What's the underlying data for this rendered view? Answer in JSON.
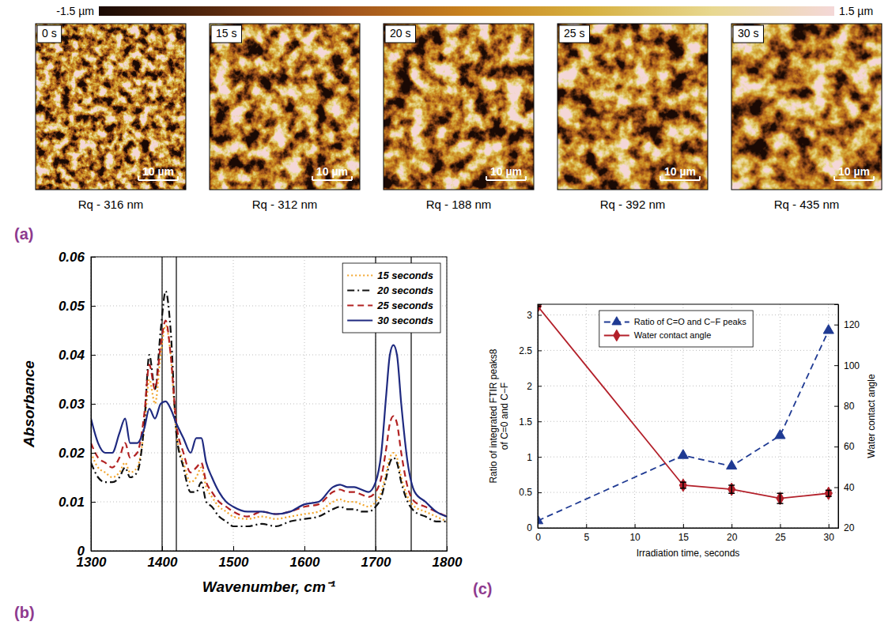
{
  "chart_data": [
    {
      "type": "image_grid",
      "panel_label": "(a)",
      "colorbar": {
        "range": [
          -1.5,
          1.5
        ],
        "ticks": [
          {
            "value": -1.5,
            "label": "-1.5 µm"
          },
          {
            "value": 1.5,
            "label": "1.5 µm"
          }
        ],
        "colors": [
          "#1a0a04",
          "#5a2a0e",
          "#a0521c",
          "#c8821e",
          "#d6b040",
          "#e8d890",
          "#f4d8d8"
        ]
      },
      "images": [
        {
          "label": "0 s",
          "scale_bar": "10 µm",
          "caption": "Rq - 316 nm"
        },
        {
          "label": "15 s",
          "scale_bar": "10 µm",
          "caption": "Rq - 312 nm"
        },
        {
          "label": "20 s",
          "scale_bar": "10 µm",
          "caption": "Rq - 188 nm"
        },
        {
          "label": "25 s",
          "scale_bar": "10 µm",
          "caption": "Rq - 392 nm"
        },
        {
          "label": "30 s",
          "scale_bar": "10 µm",
          "caption": "Rq - 435 nm"
        }
      ]
    },
    {
      "type": "line",
      "panel_label": "(b)",
      "x_label": "Wavenumber, cm⁻¹",
      "y_label": "Absorbance",
      "x": [
        1300,
        1310,
        1320,
        1330,
        1340,
        1348,
        1355,
        1365,
        1375,
        1382,
        1390,
        1398,
        1405,
        1412,
        1420,
        1430,
        1440,
        1448,
        1455,
        1462,
        1470,
        1480,
        1490,
        1500,
        1520,
        1540,
        1560,
        1580,
        1600,
        1620,
        1640,
        1650,
        1660,
        1670,
        1680,
        1690,
        1700,
        1708,
        1715,
        1720,
        1725,
        1730,
        1736,
        1745,
        1755,
        1770,
        1785,
        1800
      ],
      "xlim": [
        1300,
        1800
      ],
      "xticks": [
        1300,
        1400,
        1500,
        1600,
        1700,
        1800
      ],
      "ylim": [
        0,
        0.06
      ],
      "yticks": [
        0,
        0.01,
        0.02,
        0.03,
        0.04,
        0.05,
        0.06
      ],
      "grid": true,
      "legend": "upper right",
      "vertical_lines": [
        1400,
        1420,
        1700,
        1750
      ],
      "series": [
        {
          "name": "15 seconds",
          "color": "#f2a52b",
          "line_style": "dotted",
          "values": [
            0.02,
            0.017,
            0.016,
            0.015,
            0.016,
            0.018,
            0.016,
            0.017,
            0.025,
            0.035,
            0.03,
            0.04,
            0.046,
            0.04,
            0.024,
            0.018,
            0.014,
            0.015,
            0.017,
            0.013,
            0.011,
            0.009,
            0.008,
            0.007,
            0.0065,
            0.007,
            0.0065,
            0.007,
            0.0075,
            0.008,
            0.01,
            0.0105,
            0.01,
            0.01,
            0.0095,
            0.009,
            0.01,
            0.012,
            0.016,
            0.019,
            0.02,
            0.019,
            0.015,
            0.011,
            0.009,
            0.008,
            0.007,
            0.006
          ]
        },
        {
          "name": "20 seconds",
          "color": "#111111",
          "line_style": "dashdot",
          "values": [
            0.018,
            0.015,
            0.014,
            0.014,
            0.015,
            0.017,
            0.015,
            0.016,
            0.026,
            0.04,
            0.033,
            0.045,
            0.053,
            0.045,
            0.024,
            0.017,
            0.012,
            0.012,
            0.014,
            0.01,
            0.009,
            0.007,
            0.006,
            0.005,
            0.005,
            0.0055,
            0.005,
            0.006,
            0.0065,
            0.007,
            0.0085,
            0.009,
            0.0085,
            0.0085,
            0.008,
            0.008,
            0.009,
            0.011,
            0.015,
            0.018,
            0.019,
            0.018,
            0.014,
            0.01,
            0.008,
            0.007,
            0.006,
            0.006
          ]
        },
        {
          "name": "25 seconds",
          "color": "#b22222",
          "line_style": "dashed",
          "values": [
            0.022,
            0.019,
            0.018,
            0.017,
            0.019,
            0.022,
            0.019,
            0.02,
            0.028,
            0.038,
            0.033,
            0.042,
            0.047,
            0.04,
            0.026,
            0.02,
            0.016,
            0.017,
            0.018,
            0.014,
            0.012,
            0.01,
            0.009,
            0.008,
            0.007,
            0.008,
            0.0075,
            0.008,
            0.009,
            0.0095,
            0.012,
            0.0125,
            0.012,
            0.012,
            0.0115,
            0.011,
            0.012,
            0.015,
            0.021,
            0.026,
            0.0275,
            0.026,
            0.02,
            0.013,
            0.01,
            0.009,
            0.008,
            0.007
          ]
        },
        {
          "name": "30 seconds",
          "color": "#1f2a80",
          "line_style": "solid",
          "values": [
            0.027,
            0.022,
            0.02,
            0.02,
            0.024,
            0.027,
            0.022,
            0.022,
            0.025,
            0.029,
            0.027,
            0.03,
            0.0305,
            0.029,
            0.026,
            0.023,
            0.02,
            0.023,
            0.023,
            0.018,
            0.015,
            0.012,
            0.01,
            0.009,
            0.008,
            0.008,
            0.0075,
            0.008,
            0.0095,
            0.01,
            0.013,
            0.0135,
            0.013,
            0.013,
            0.0125,
            0.012,
            0.014,
            0.02,
            0.032,
            0.04,
            0.042,
            0.04,
            0.03,
            0.018,
            0.012,
            0.01,
            0.008,
            0.007
          ]
        }
      ]
    },
    {
      "type": "line",
      "panel_label": "(c)",
      "x_label": "Irradiation time, seconds",
      "y_label": [
        "Ratio of integrated FTIR peaks8",
        "of C=0 and C−F"
      ],
      "y2_label": "Water contact angle",
      "x": [
        0,
        15,
        20,
        25,
        30
      ],
      "xlim": [
        0,
        31
      ],
      "xticks": [
        0,
        5,
        10,
        15,
        20,
        25,
        30
      ],
      "ylim": [
        0,
        3.15
      ],
      "yticks": [
        0,
        0.5,
        1,
        1.5,
        2,
        2.5,
        3
      ],
      "y2lim": [
        20,
        130
      ],
      "y2ticks": [
        20,
        40,
        60,
        80,
        100,
        120
      ],
      "grid": true,
      "legend": "upper center",
      "series": [
        {
          "name": "Ratio of C=O and C−F peaks",
          "color": "#1f3a93",
          "line_style": "dashed",
          "marker": "triangle",
          "values": [
            0.1,
            1.02,
            0.87,
            1.3,
            2.78
          ]
        },
        {
          "name": "Water contact angle",
          "color": "#b3202a",
          "line_style": "solid",
          "marker": "diamond",
          "axis": "y2",
          "values": [
            129,
            41,
            39,
            34.5,
            37
          ],
          "errors": [
            0,
            1.5,
            2,
            2.5,
            1.5
          ]
        }
      ]
    }
  ]
}
